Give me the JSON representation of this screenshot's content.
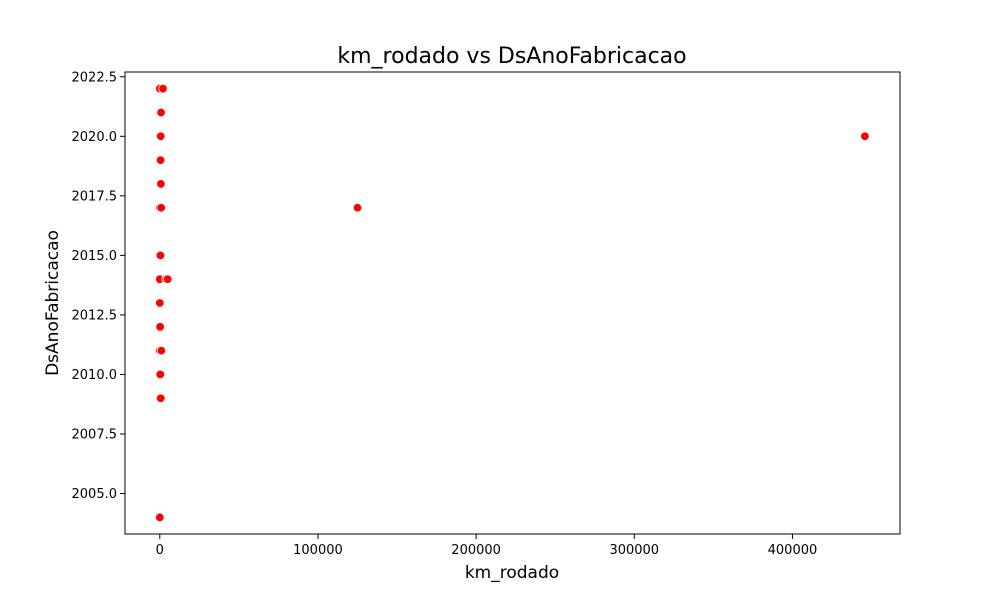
{
  "chart_data": {
    "type": "scatter",
    "title": "km_rodado vs DsAnoFabricacao",
    "xlabel": "km_rodado",
    "ylabel": "DsAnoFabricacao",
    "xlim": [
      -22000,
      468000
    ],
    "ylim": [
      2003.3,
      2022.7
    ],
    "xticks": [
      0,
      100000,
      200000,
      300000,
      400000
    ],
    "xtick_labels": [
      "0",
      "100000",
      "200000",
      "300000",
      "400000"
    ],
    "yticks": [
      2005.0,
      2007.5,
      2010.0,
      2012.5,
      2015.0,
      2017.5,
      2020.0,
      2022.5
    ],
    "ytick_labels": [
      "2005.0",
      "2007.5",
      "2010.0",
      "2012.5",
      "2015.0",
      "2017.5",
      "2020.0",
      "2022.5"
    ],
    "grid": false,
    "marker_color": "#ff0000",
    "points": [
      {
        "x": 0,
        "y": 2022
      },
      {
        "x": 2000,
        "y": 2022
      },
      {
        "x": 300,
        "y": 2021
      },
      {
        "x": 800,
        "y": 2021
      },
      {
        "x": 0,
        "y": 2020
      },
      {
        "x": 600,
        "y": 2020
      },
      {
        "x": 445800,
        "y": 2020
      },
      {
        "x": 0,
        "y": 2019
      },
      {
        "x": 500,
        "y": 2019
      },
      {
        "x": 200,
        "y": 2018
      },
      {
        "x": 700,
        "y": 2018
      },
      {
        "x": 0,
        "y": 2017
      },
      {
        "x": 900,
        "y": 2017
      },
      {
        "x": 125000,
        "y": 2017
      },
      {
        "x": 0,
        "y": 2015
      },
      {
        "x": 400,
        "y": 2015
      },
      {
        "x": 0,
        "y": 2014
      },
      {
        "x": 4000,
        "y": 2014
      },
      {
        "x": 5000,
        "y": 2014
      },
      {
        "x": 0,
        "y": 2013
      },
      {
        "x": 0,
        "y": 2012
      },
      {
        "x": 200,
        "y": 2012
      },
      {
        "x": 0,
        "y": 2011
      },
      {
        "x": 1000,
        "y": 2011
      },
      {
        "x": 0,
        "y": 2010
      },
      {
        "x": 300,
        "y": 2010
      },
      {
        "x": 0,
        "y": 2009
      },
      {
        "x": 600,
        "y": 2009
      },
      {
        "x": 0,
        "y": 2004
      }
    ]
  }
}
